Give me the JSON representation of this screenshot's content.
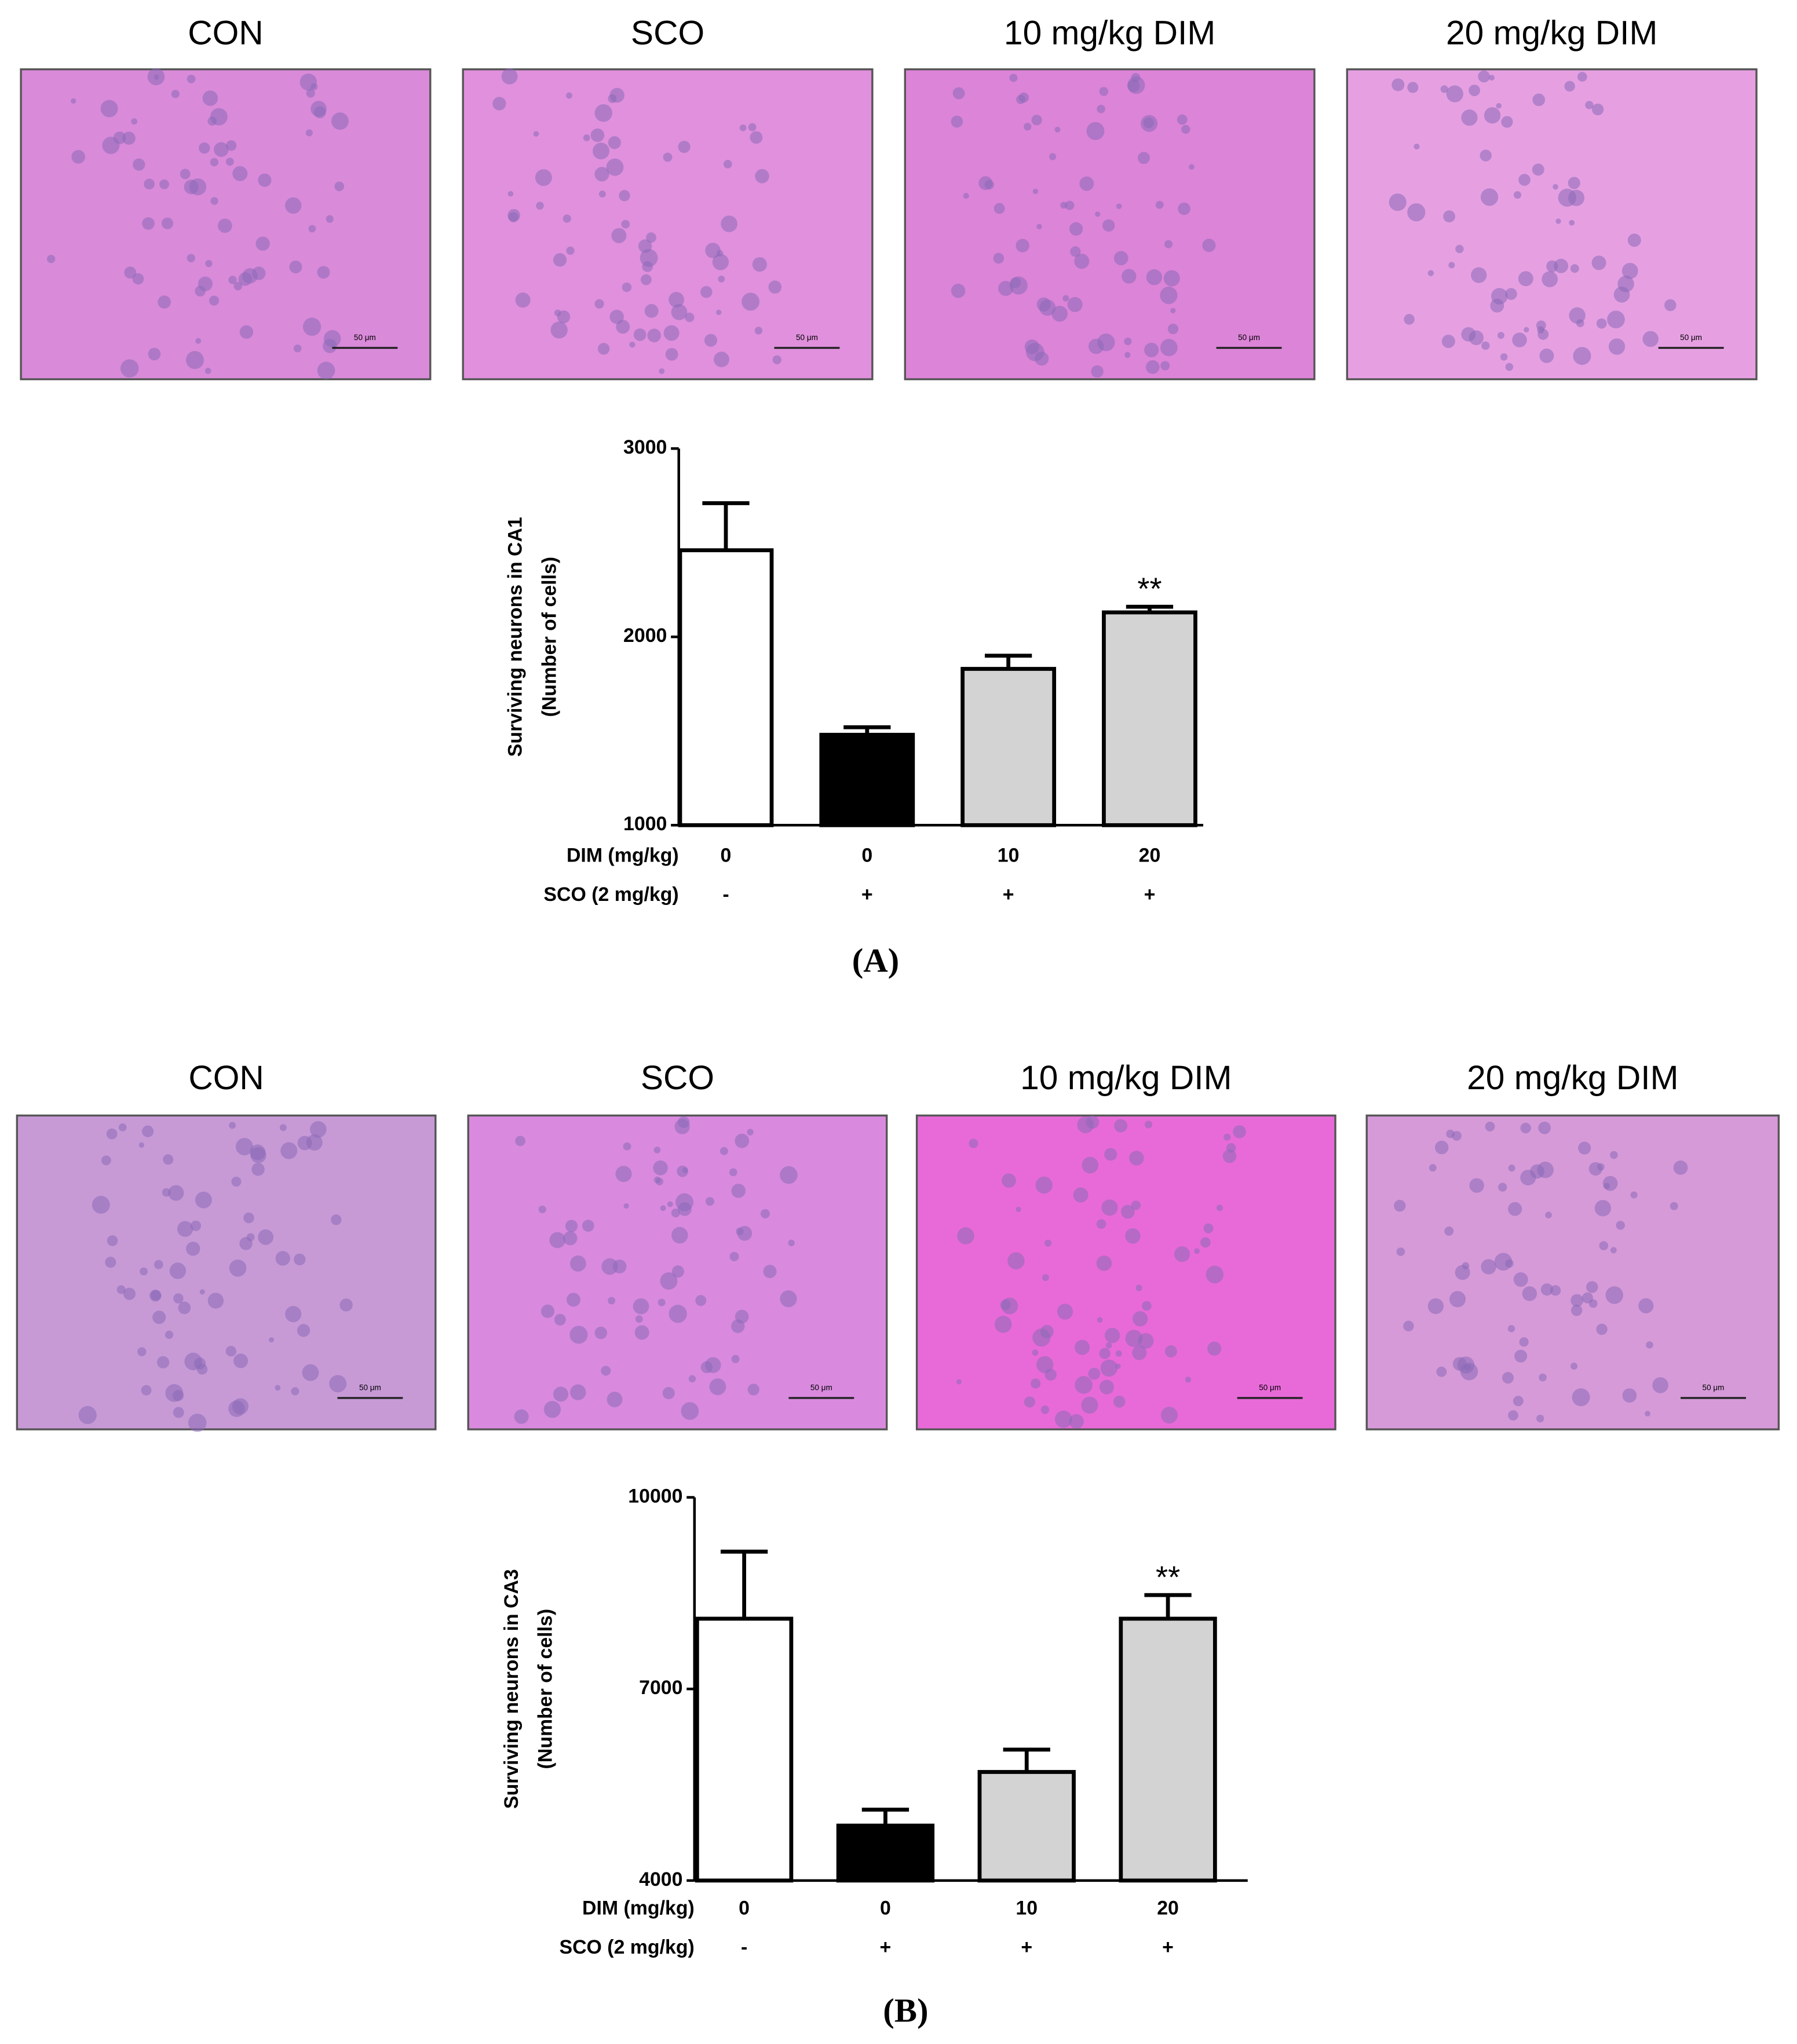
{
  "panels": [
    {
      "label": "(A)",
      "image_titles": [
        "CON",
        "SCO",
        "10 mg/kg DIM",
        "20 mg/kg DIM"
      ],
      "scale_bar": "50 μm"
    },
    {
      "label": "(B)",
      "image_titles": [
        "CON",
        "SCO",
        "10 mg/kg DIM",
        "20 mg/kg DIM"
      ],
      "scale_bar": "50 μm"
    }
  ],
  "chart_data": [
    {
      "type": "bar",
      "y_label": [
        "Surviving neurons in CA1",
        "(Number of cells)"
      ],
      "row_labels": [
        "DIM (mg/kg)",
        "SCO (2 mg/kg)"
      ],
      "categories": [
        "0",
        "0",
        "10",
        "20"
      ],
      "categories2": [
        "-",
        "+",
        "+",
        "+"
      ],
      "values": [
        2460,
        1480,
        1830,
        2130
      ],
      "errors": [
        250,
        40,
        70,
        30
      ],
      "colors": [
        "#ffffff",
        "#000000",
        "#d3d3d3",
        "#d3d3d3"
      ],
      "significance": [
        null,
        null,
        null,
        "**"
      ],
      "ylim": [
        1000,
        3000
      ],
      "yticks": [
        1000,
        2000,
        3000
      ]
    },
    {
      "type": "bar",
      "y_label": [
        "Surviving neurons in CA3",
        "(Number of cells)"
      ],
      "row_labels": [
        "DIM (mg/kg)",
        "SCO (2 mg/kg)"
      ],
      "categories": [
        "0",
        "0",
        "10",
        "20"
      ],
      "categories2": [
        "-",
        "+",
        "+",
        "+"
      ],
      "values": [
        8100,
        4860,
        5700,
        8100
      ],
      "errors": [
        1050,
        250,
        350,
        370
      ],
      "colors": [
        "#ffffff",
        "#000000",
        "#d3d3d3",
        "#d3d3d3"
      ],
      "significance": [
        null,
        null,
        null,
        "**"
      ],
      "ylim": [
        4000,
        10000
      ],
      "yticks": [
        4000,
        7000,
        10000
      ]
    }
  ]
}
